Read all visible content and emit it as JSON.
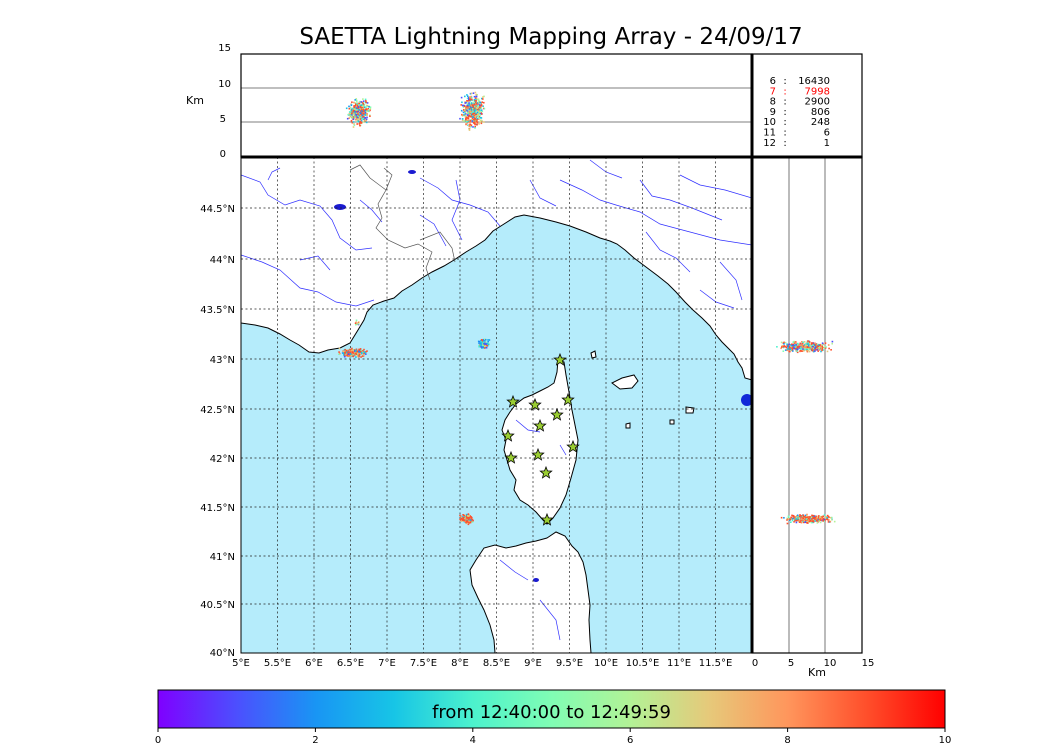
{
  "title": "SAETTA Lightning Mapping Array - 24/09/17",
  "top_panel": {
    "ylabel": "Km",
    "yticks": [
      "15",
      "10",
      "5",
      "0"
    ]
  },
  "right_panel": {
    "xlabel": "Km",
    "xticks": [
      "0",
      "5",
      "10",
      "15"
    ]
  },
  "map": {
    "lat_ticks": [
      "44.5°N",
      "44°N",
      "43.5°N",
      "43°N",
      "42.5°N",
      "42°N",
      "41.5°N",
      "41°N",
      "40.5°N",
      "40°N"
    ],
    "lon_ticks": [
      "5°E",
      "5.5°E",
      "6°E",
      "6.5°E",
      "7°E",
      "7.5°E",
      "8°E",
      "8.5°E",
      "9°E",
      "9.5°E",
      "10°E",
      "10.5°E",
      "11°E",
      "11.5°E"
    ],
    "sea_color": "#b5ecfb",
    "land_color": "#ffffff",
    "station_icon": "star-icon",
    "station_color": "#9acd32"
  },
  "station_counts": [
    {
      "stations": "6",
      "sep": ":",
      "count": "16430",
      "color": "#000000"
    },
    {
      "stations": "7",
      "sep": ":",
      "count": "7998",
      "color": "#ff0000"
    },
    {
      "stations": "8",
      "sep": ":",
      "count": "2900",
      "color": "#000000"
    },
    {
      "stations": "9",
      "sep": ":",
      "count": "806",
      "color": "#000000"
    },
    {
      "stations": "10",
      "sep": ":",
      "count": "248",
      "color": "#000000"
    },
    {
      "stations": "11",
      "sep": ":",
      "count": "6",
      "color": "#000000"
    },
    {
      "stations": "12",
      "sep": ":",
      "count": "1",
      "color": "#000000"
    }
  ],
  "colorbar": {
    "label": "from 12:40:00 to 12:49:59",
    "ticks": [
      "0",
      "2",
      "4",
      "6",
      "8",
      "10"
    ]
  }
}
